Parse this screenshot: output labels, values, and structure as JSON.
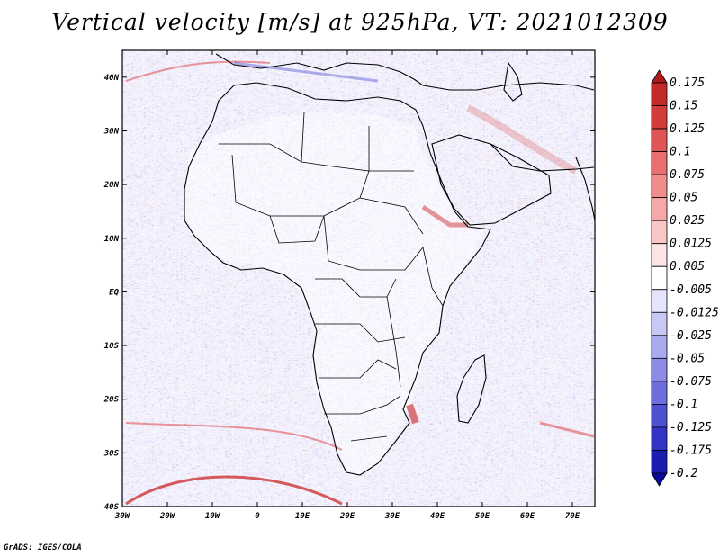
{
  "title": "Vertical velocity [m/s] at 925hPa, VT: 2021012309",
  "credit": "GrADS: IGES/COLA",
  "map": {
    "lat_labels": [
      "40N",
      "30N",
      "20N",
      "10N",
      "EQ",
      "10S",
      "20S",
      "30S",
      "40S"
    ],
    "lat_values": [
      40,
      30,
      20,
      10,
      0,
      -10,
      -20,
      -30,
      -40
    ],
    "lon_labels": [
      "30W",
      "20W",
      "10W",
      "0",
      "10E",
      "20E",
      "30E",
      "40E",
      "50E",
      "60E",
      "70E"
    ],
    "lon_values": [
      -30,
      -20,
      -10,
      0,
      10,
      20,
      30,
      40,
      50,
      60,
      70
    ],
    "lon_range": [
      -30,
      75
    ],
    "lat_range": [
      -40,
      45
    ]
  },
  "colorbar": {
    "labels": [
      "0.175",
      "0.15",
      "0.125",
      "0.1",
      "0.075",
      "0.05",
      "0.025",
      "0.0125",
      "0.005",
      "-0.005",
      "-0.0125",
      "-0.025",
      "-0.05",
      "-0.075",
      "-0.1",
      "-0.125",
      "-0.175",
      "-0.2"
    ],
    "colors": [
      "#b01a1a",
      "#c42a2a",
      "#d43c3c",
      "#e05656",
      "#e87070",
      "#ef8c8c",
      "#f5a8a8",
      "#f9c6c6",
      "#fde4e4",
      "#ffffff",
      "#e4e4fb",
      "#c8c8f4",
      "#aaaaee",
      "#8c8ce6",
      "#6e6edc",
      "#5050d2",
      "#3434c4",
      "#1c1cb0",
      "#0a0a96"
    ]
  }
}
